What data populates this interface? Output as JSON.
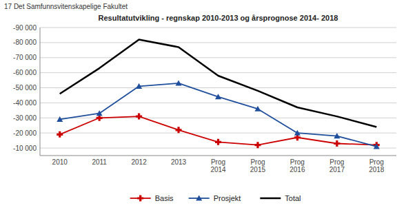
{
  "chart_data": {
    "type": "line",
    "title": "Resultatutvikling  -  regnskap 2010-2013 og årsprognose  2014- 2018",
    "subtitle": "17 Det Samfunnsvitenskapelige Fakultet",
    "categories": [
      "2010",
      "2011",
      "2012",
      "2013",
      "Prog\n2014",
      "Prog\n2015",
      "Prog\n2016",
      "Prog\n2017",
      "Prog\n2018"
    ],
    "series": [
      {
        "name": "Basis",
        "color": "#cc0000",
        "marker": "plus",
        "values": [
          -19000,
          -30000,
          -31000,
          -22000,
          -14000,
          -12000,
          -17000,
          -13000,
          -12000
        ]
      },
      {
        "name": "Prosjekt",
        "color": "#1f4e9c",
        "marker": "triangle",
        "values": [
          -29000,
          -33000,
          -51000,
          -53000,
          -44000,
          -36000,
          -20000,
          -18000,
          -11000
        ]
      },
      {
        "name": "Total",
        "color": "#000000",
        "marker": "none",
        "values": [
          -46000,
          -63000,
          -82000,
          -77000,
          -58000,
          -48000,
          -37000,
          -31000,
          -24000
        ]
      }
    ],
    "ylim": [
      -5000,
      -90000
    ],
    "yticks": [
      {
        "value": -90000,
        "label": "-90 000"
      },
      {
        "value": -80000,
        "label": "-80 000"
      },
      {
        "value": -70000,
        "label": "-70 000"
      },
      {
        "value": -60000,
        "label": "-60 000"
      },
      {
        "value": -50000,
        "label": "-50 000"
      },
      {
        "value": -40000,
        "label": "-40 000"
      },
      {
        "value": -30000,
        "label": "-30 000"
      },
      {
        "value": -20000,
        "label": "-20 000"
      },
      {
        "value": -10000,
        "label": "-10 000"
      }
    ],
    "grid": true,
    "legend": "bottom"
  }
}
